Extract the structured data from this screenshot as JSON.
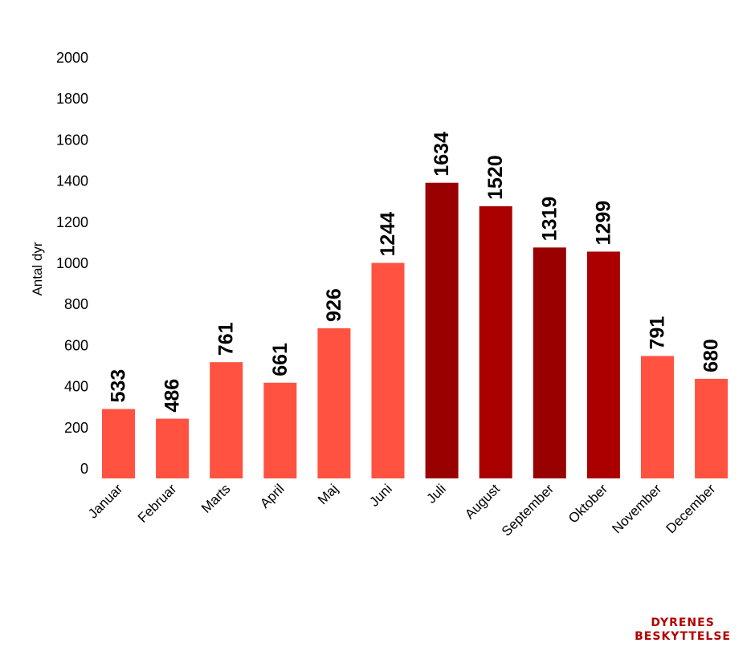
{
  "chart_data": {
    "type": "bar",
    "ylabel": "Antal dyr",
    "xlabel": "",
    "ylim": [
      0,
      2000
    ],
    "yticks": [
      0,
      200,
      400,
      600,
      800,
      1000,
      1200,
      1400,
      1600,
      1800,
      2000
    ],
    "grid": false,
    "categories": [
      "Januar",
      "Februar",
      "Marts",
      "April",
      "Maj",
      "Juni",
      "Juli",
      "August",
      "September",
      "Oktober",
      "November",
      "December"
    ],
    "values": [
      533,
      486,
      761,
      661,
      926,
      1244,
      1634,
      1520,
      1319,
      1299,
      791,
      680
    ],
    "data_labels": [
      "533",
      "486",
      "761",
      "661",
      "926",
      "1244",
      "1634",
      "1520",
      "1319",
      "1299",
      "791",
      "680"
    ],
    "colors": {
      "bar_default": "#ff5240",
      "bar_highlight": [
        "#990000",
        "#aa0000",
        "#990000",
        "#aa0000"
      ],
      "text": "#000000"
    },
    "highlighted_categories": [
      "Juli",
      "August",
      "September",
      "Oktober"
    ]
  },
  "logo": {
    "line1": "DYRENES",
    "line2": "BESKYTTELSE",
    "color": "#b30000"
  }
}
